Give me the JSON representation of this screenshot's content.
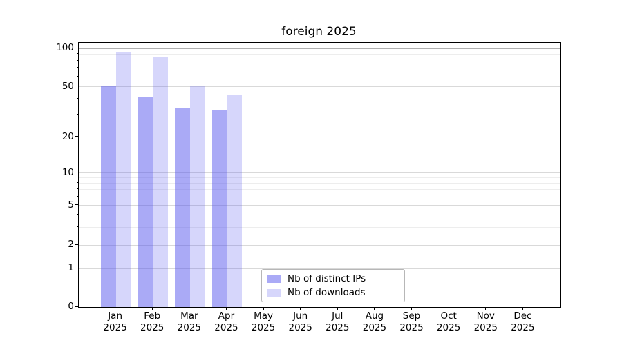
{
  "title": "foreign 2025",
  "chart_data": {
    "type": "bar",
    "title": "foreign 2025",
    "xlabel": "",
    "ylabel": "",
    "year": "2025",
    "categories": [
      "Jan",
      "Feb",
      "Mar",
      "Apr",
      "May",
      "Jun",
      "Jul",
      "Aug",
      "Sep",
      "Oct",
      "Nov",
      "Dec"
    ],
    "series": [
      {
        "name": "Nb of distinct IPs",
        "color": "rgba(85,85,238,0.50)",
        "values": [
          51,
          42,
          34,
          33,
          0,
          0,
          0,
          0,
          0,
          0,
          0,
          0
        ]
      },
      {
        "name": "Nb of downloads",
        "color": "rgba(85,85,238,0.24)",
        "values": [
          93,
          85,
          51,
          43,
          0,
          0,
          0,
          0,
          0,
          0,
          0,
          0
        ]
      }
    ],
    "yaxis": {
      "scale": "asinh-log",
      "ticks": [
        0,
        1,
        2,
        5,
        10,
        20,
        50,
        100
      ],
      "minor_ticks": [
        3,
        4,
        6,
        7,
        8,
        9,
        30,
        40,
        60,
        70,
        80,
        90
      ],
      "ylim": [
        0,
        115
      ],
      "anchors": {
        "0": 0,
        "1": 0.145,
        "2": 0.2344,
        "5": 0.3846,
        "10": 0.5078,
        "20": 0.6424,
        "50": 0.8333,
        "100": 0.9784
      }
    },
    "grid": "on",
    "legend_position": "lower-center",
    "colors": {
      "grid_major": "#d9d9d9",
      "grid_minor": "#ededed",
      "grid_top": "#b0b0b0",
      "spine": "#000000",
      "background": "#ffffff"
    }
  },
  "legend": {
    "items": [
      {
        "label": "Nb of distinct IPs"
      },
      {
        "label": "Nb of downloads"
      }
    ]
  }
}
